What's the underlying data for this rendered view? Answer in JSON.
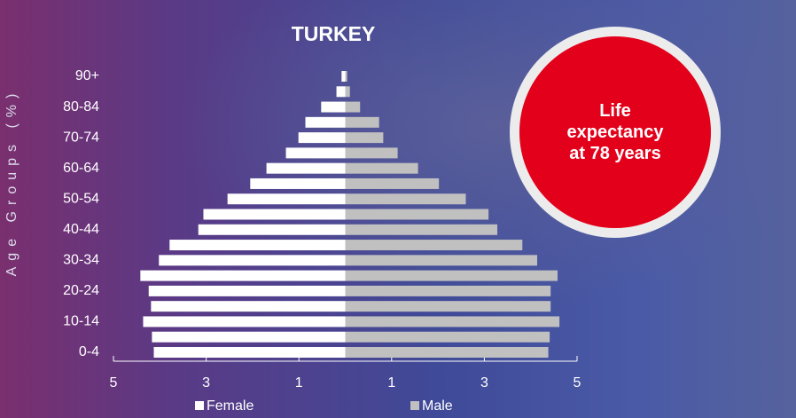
{
  "chart_data": {
    "type": "pyramid",
    "title": "TURKEY",
    "y_label": "Age Groups (%)",
    "annotation": "Life expectancy at 78 years",
    "categories": [
      "0-4",
      null,
      "10-14",
      null,
      "20-24",
      null,
      "30-34",
      null,
      "40-44",
      null,
      "50-54",
      null,
      "60-64",
      null,
      "70-74",
      null,
      "80-84",
      null,
      "90+"
    ],
    "series": [
      {
        "name": "Female",
        "color": "#ffffff",
        "values": [
          -4.13,
          -4.17,
          -4.36,
          -4.19,
          -4.24,
          -4.42,
          -4.02,
          -3.79,
          -3.17,
          -3.06,
          -2.54,
          -2.05,
          -1.7,
          -1.28,
          -1.01,
          -0.86,
          -0.52,
          -0.19,
          -0.08
        ]
      },
      {
        "name": "Male",
        "color": "#c0c0c0",
        "values": [
          4.38,
          4.41,
          4.62,
          4.43,
          4.43,
          4.58,
          4.14,
          3.82,
          3.28,
          3.09,
          2.6,
          2.02,
          1.57,
          1.13,
          0.82,
          0.73,
          0.32,
          0.1,
          0.04
        ]
      }
    ],
    "xlim": [
      -5,
      5
    ],
    "xticks": [
      {
        "value": -5,
        "label": "5"
      },
      {
        "value": -3,
        "label": "3"
      },
      {
        "value": -1,
        "label": "1"
      },
      1,
      3,
      5
    ],
    "negative_tick_color": "#e3001b"
  }
}
